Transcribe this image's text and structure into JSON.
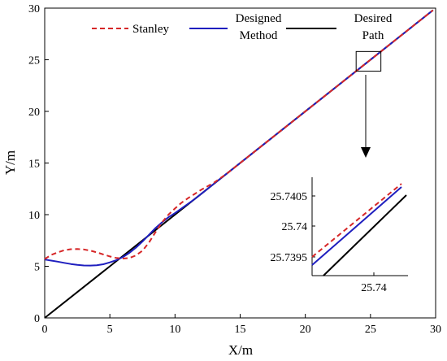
{
  "chart_data": {
    "type": "line",
    "xlabel": "X/m",
    "ylabel": "Y/m",
    "xlim": [
      0,
      30
    ],
    "ylim": [
      0,
      30
    ],
    "xticks": [
      "0",
      "5",
      "10",
      "15",
      "20",
      "25",
      "30"
    ],
    "yticks": [
      "0",
      "5",
      "10",
      "15",
      "20",
      "25",
      "30"
    ],
    "grid": false,
    "legend_placement": "top",
    "legend": [
      {
        "label": "Stanley"
      },
      {
        "label_lines": [
          "Designed",
          "Method"
        ]
      },
      {
        "label_lines": [
          "Desired",
          "Path"
        ]
      }
    ],
    "series": [
      {
        "name": "Stanley",
        "color": "#d62728",
        "style": "dashed",
        "x": [
          0,
          0.5,
          1,
          1.5,
          2,
          2.5,
          3,
          3.5,
          4,
          4.5,
          5,
          5.5,
          6,
          6.5,
          7,
          7.5,
          8,
          8.5,
          9,
          9.5,
          10,
          10.5,
          11,
          11.5,
          12,
          12.5,
          13,
          14,
          16,
          18,
          20,
          22,
          24,
          26,
          28,
          29.8
        ],
        "y": [
          5.7,
          6.1,
          6.35,
          6.55,
          6.65,
          6.67,
          6.63,
          6.52,
          6.35,
          6.15,
          5.95,
          5.8,
          5.75,
          5.8,
          6.05,
          6.5,
          7.3,
          8.3,
          9.25,
          10.0,
          10.6,
          11.15,
          11.6,
          12.0,
          12.4,
          12.75,
          13.1,
          14.0,
          16.0,
          18.0,
          20.0,
          22.0,
          24.0,
          26.0,
          28.0,
          29.8
        ]
      },
      {
        "name": "Designed Method",
        "color": "#1f1fbf",
        "style": "solid",
        "x": [
          0,
          0.5,
          1,
          1.5,
          2,
          2.5,
          3,
          3.5,
          4,
          4.5,
          5,
          5.5,
          6,
          6.5,
          7,
          7.5,
          8,
          8.5,
          9,
          9.5,
          10,
          10.5,
          11,
          11.5,
          12,
          13,
          14,
          16,
          18,
          20,
          22,
          24,
          26,
          28,
          29.8
        ],
        "y": [
          5.65,
          5.55,
          5.45,
          5.33,
          5.22,
          5.13,
          5.08,
          5.07,
          5.1,
          5.2,
          5.38,
          5.6,
          5.9,
          6.3,
          6.8,
          7.4,
          8.05,
          8.7,
          9.25,
          9.75,
          10.15,
          10.6,
          11.05,
          11.5,
          12.0,
          13.0,
          14.0,
          16.0,
          18.0,
          20.0,
          22.0,
          24.0,
          26.0,
          28.0,
          29.8
        ]
      },
      {
        "name": "Desired Path",
        "color": "#000000",
        "style": "solid",
        "x": [
          0,
          29.8
        ],
        "y": [
          0,
          29.8
        ]
      }
    ],
    "inset": {
      "xticks": [
        "25.74"
      ],
      "yticks": [
        "25.7405",
        "25.74",
        "25.7395"
      ],
      "zoom_box_x": [
        23.9,
        25.8
      ],
      "zoom_box_y": [
        23.9,
        25.8
      ]
    }
  }
}
